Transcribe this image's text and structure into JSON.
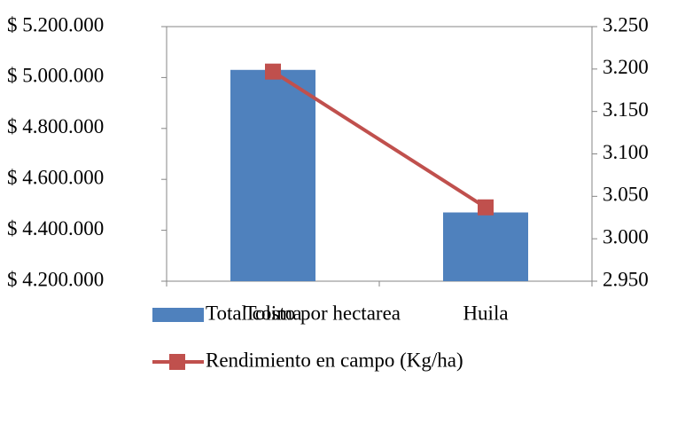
{
  "chart_data": {
    "type": "bar",
    "categories": [
      "Tolima",
      "Huila"
    ],
    "series": [
      {
        "name": "Total costo por hectarea",
        "type": "bar",
        "color": "#4f81bd",
        "values": [
          5030000,
          4470000
        ]
      },
      {
        "name": "Rendimiento en campo (Kg/ha)",
        "type": "line",
        "axis": "y2",
        "color": "#c0504d",
        "values": [
          3197,
          3037
        ]
      }
    ],
    "ylim": [
      4200000,
      5200000
    ],
    "yticks": [
      {
        "value": 4200000,
        "label": "$ 4.200.000"
      },
      {
        "value": 4400000,
        "label": "$ 4.400.000"
      },
      {
        "value": 4600000,
        "label": "$ 4.600.000"
      },
      {
        "value": 4800000,
        "label": "$ 4.800.000"
      },
      {
        "value": 5000000,
        "label": "$ 5.000.000"
      },
      {
        "value": 5200000,
        "label": "$ 5.200.000"
      }
    ],
    "y2lim": [
      2950,
      3250
    ],
    "y2ticks": [
      {
        "value": 2950,
        "label": "2.950"
      },
      {
        "value": 3000,
        "label": "3.000"
      },
      {
        "value": 3050,
        "label": "3.050"
      },
      {
        "value": 3100,
        "label": "3.100"
      },
      {
        "value": 3150,
        "label": "3.150"
      },
      {
        "value": 3200,
        "label": "3.200"
      },
      {
        "value": 3250,
        "label": "3.250"
      }
    ],
    "grid": false
  }
}
